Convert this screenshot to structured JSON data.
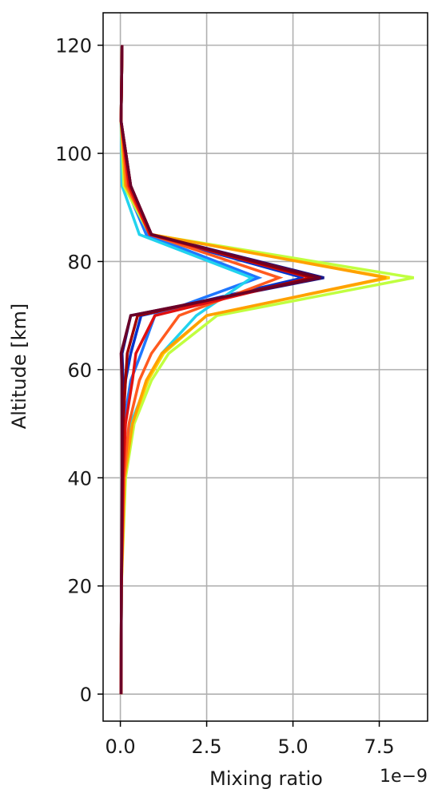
{
  "chart_data": {
    "type": "line",
    "title": "",
    "xlabel": "Mixing ratio",
    "ylabel": "Altitude [km]",
    "x_offset_label": "1e−9",
    "x_scale": 1e-09,
    "xlim": [
      -0.5,
      8.9
    ],
    "ylim": [
      -5,
      126
    ],
    "xticks": [
      0.0,
      2.5,
      5.0,
      7.5
    ],
    "xtick_labels": [
      "0.0",
      "2.5",
      "5.0",
      "7.5"
    ],
    "yticks": [
      0,
      20,
      40,
      60,
      80,
      100,
      120
    ],
    "ytick_labels": [
      "0",
      "20",
      "40",
      "60",
      "80",
      "100",
      "120"
    ],
    "grid": true,
    "legend": "none",
    "y": [
      0,
      20,
      40,
      50,
      58,
      63,
      70,
      77,
      85,
      94,
      106,
      120
    ],
    "series": [
      {
        "color": "#1a1a8c",
        "values": [
          0.02,
          0.03,
          0.08,
          0.05,
          0.08,
          0.05,
          0.3,
          5.9,
          0.9,
          0.3,
          0.02,
          0.05
        ]
      },
      {
        "color": "#0033cc",
        "values": [
          0.02,
          0.03,
          0.08,
          0.06,
          0.15,
          0.3,
          0.6,
          5.3,
          0.8,
          0.2,
          0.02,
          0.05
        ]
      },
      {
        "color": "#1f77ff",
        "values": [
          0.02,
          0.03,
          0.1,
          0.1,
          0.3,
          0.6,
          1.0,
          4.0,
          0.75,
          0.15,
          0.02,
          0.05
        ]
      },
      {
        "color": "#22d3ee",
        "values": [
          0.02,
          0.03,
          0.1,
          0.3,
          0.8,
          1.2,
          2.2,
          3.8,
          0.55,
          0.05,
          0.02,
          0.05
        ]
      },
      {
        "color": "#c0ff40",
        "values": [
          0.02,
          0.03,
          0.15,
          0.4,
          0.9,
          1.4,
          2.8,
          8.5,
          0.85,
          0.1,
          0.02,
          0.05
        ]
      },
      {
        "color": "#ffd400",
        "values": [
          0.02,
          0.03,
          0.12,
          0.35,
          0.8,
          1.25,
          2.5,
          7.8,
          0.9,
          0.15,
          0.02,
          0.05
        ]
      },
      {
        "color": "#ffa000",
        "values": [
          0.02,
          0.03,
          0.12,
          0.35,
          0.75,
          1.2,
          2.5,
          7.7,
          0.9,
          0.15,
          0.02,
          0.05
        ]
      },
      {
        "color": "#ff5a1f",
        "values": [
          0.02,
          0.03,
          0.1,
          0.25,
          0.55,
          0.9,
          1.7,
          4.6,
          0.85,
          0.2,
          0.02,
          0.05
        ]
      },
      {
        "color": "#e01010",
        "values": [
          0.02,
          0.03,
          0.08,
          0.15,
          0.35,
          0.45,
          1.0,
          5.5,
          0.85,
          0.25,
          0.02,
          0.05
        ]
      },
      {
        "color": "#a00000",
        "values": [
          0.02,
          0.03,
          0.06,
          0.08,
          0.15,
          0.2,
          0.5,
          5.6,
          0.9,
          0.3,
          0.02,
          0.05
        ]
      },
      {
        "color": "#6a0028",
        "values": [
          0.02,
          0.03,
          0.05,
          0.05,
          0.05,
          0.02,
          0.3,
          5.8,
          0.9,
          0.3,
          0.02,
          0.05
        ]
      }
    ]
  }
}
